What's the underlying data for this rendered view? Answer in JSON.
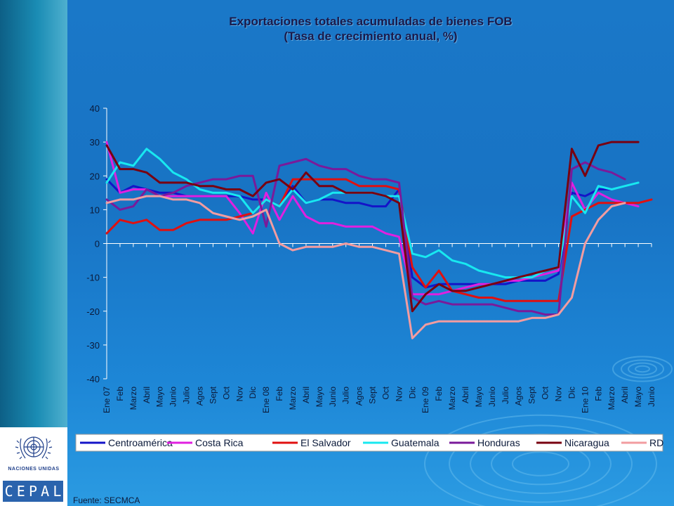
{
  "slide": {
    "title_line1": "Exportaciones totales acumuladas de bienes FOB",
    "title_line2": "(Tasa de crecimiento anual, %)",
    "source": "Fuente: SECMCA",
    "logo_text": "NACIONES UNIDAS",
    "logo_letters": [
      "C",
      "E",
      "P",
      "A",
      "L"
    ]
  },
  "chart_data": {
    "type": "line",
    "title": "Exportaciones totales acumuladas de bienes FOB (Tasa de crecimiento anual, %)",
    "xlabel": "",
    "ylabel": "",
    "ylim": [
      -40,
      40
    ],
    "yticks": [
      "40",
      "30",
      "20",
      "10",
      "0",
      "-10",
      "-20",
      "-30",
      "-40"
    ],
    "ytick_values": [
      40,
      30,
      20,
      10,
      0,
      -10,
      -20,
      -30,
      -40
    ],
    "grid": false,
    "legend_position": "bottom",
    "categories": [
      "Ene 07",
      "Feb",
      "Marzo",
      "Abril",
      "Mayo",
      "Junio",
      "Julio",
      "Agos",
      "Sept",
      "Oct",
      "Nov",
      "Dic",
      "Ene 08",
      "Feb",
      "Marzo",
      "Abril",
      "Mayo",
      "Junio",
      "Julio",
      "Agos",
      "Sept",
      "Oct",
      "Nov",
      "Dic",
      "Ene 09",
      "Feb",
      "Marzo",
      "Abril",
      "Mayo",
      "Junio",
      "Julio",
      "Agos",
      "Sept",
      "Oct",
      "Nov",
      "Dic",
      "Ene 10",
      "Feb",
      "Marzo",
      "Abril",
      "Mayo",
      "Junio"
    ],
    "series": [
      {
        "name": "Centroamérica",
        "color": "#1414c8",
        "values": [
          19,
          15,
          17,
          16,
          15,
          15,
          14,
          14,
          14,
          14,
          14,
          13,
          13,
          11,
          17,
          12,
          13,
          13,
          12,
          12,
          11,
          11,
          16,
          -10,
          -13,
          -12,
          -12,
          -12,
          -12,
          -12,
          -12,
          -11,
          -11,
          -11,
          -9,
          15,
          14,
          16,
          16,
          null,
          null,
          null
        ]
      },
      {
        "name": "Costa Rica",
        "color": "#e020e0",
        "values": [
          30,
          15,
          16,
          16,
          14,
          14,
          14,
          14,
          14,
          14,
          9,
          3,
          15,
          7,
          14,
          8,
          6,
          6,
          5,
          5,
          5,
          3,
          2,
          -15,
          -15,
          -15,
          -14,
          -13,
          -12,
          -12,
          -11,
          -11,
          -10,
          -9,
          -8,
          18,
          10,
          15,
          13,
          12,
          11,
          null
        ]
      },
      {
        "name": "El Salvador",
        "color": "#e01010",
        "values": [
          3,
          7,
          6,
          7,
          4,
          4,
          6,
          7,
          7,
          7,
          8,
          9,
          13,
          11,
          19,
          19,
          19,
          19,
          19,
          17,
          17,
          17,
          16,
          -7,
          -13,
          -8,
          -14,
          -15,
          -16,
          -16,
          -17,
          -17,
          -17,
          -17,
          -17,
          8,
          10,
          12,
          12,
          12,
          12,
          13
        ]
      },
      {
        "name": "Guatemala",
        "color": "#18e8f0",
        "values": [
          18,
          24,
          23,
          28,
          25,
          21,
          19,
          16,
          15,
          15,
          14,
          9,
          13,
          11,
          16,
          12,
          13,
          15,
          15,
          15,
          15,
          14,
          14,
          -3,
          -4,
          -2,
          -5,
          -6,
          -8,
          -9,
          -10,
          -10,
          -10,
          -8,
          -7,
          14,
          9,
          17,
          16,
          17,
          18,
          null
        ]
      },
      {
        "name": "Honduras",
        "color": "#7a1a9a",
        "values": [
          13,
          10,
          11,
          16,
          14,
          15,
          17,
          18,
          19,
          19,
          20,
          20,
          5,
          23,
          24,
          25,
          23,
          22,
          22,
          20,
          19,
          19,
          18,
          -16,
          -18,
          -17,
          -18,
          -18,
          -18,
          -18,
          -19,
          -20,
          -20,
          -21,
          -21,
          22,
          24,
          22,
          21,
          19,
          null,
          null
        ]
      },
      {
        "name": "Nicaragua",
        "color": "#780010",
        "values": [
          29,
          22,
          22,
          21,
          18,
          18,
          18,
          17,
          17,
          16,
          16,
          14,
          18,
          19,
          16,
          21,
          17,
          17,
          15,
          15,
          15,
          14,
          12,
          -20,
          -15,
          -12,
          -14,
          -14,
          -13,
          -12,
          -11,
          -10,
          -9,
          -8,
          -7,
          28,
          20,
          29,
          30,
          30,
          30,
          null
        ]
      },
      {
        "name": "RD",
        "color": "#f29ca0",
        "values": [
          12,
          13,
          13,
          14,
          14,
          13,
          13,
          12,
          9,
          8,
          7,
          8,
          10,
          0,
          -2,
          -1,
          -1,
          -1,
          0,
          -1,
          -1,
          -2,
          -3,
          -28,
          -24,
          -23,
          -23,
          -23,
          -23,
          -23,
          -23,
          -23,
          -22,
          -22,
          -21,
          -16,
          0,
          7,
          11,
          12,
          null,
          null
        ]
      }
    ]
  }
}
